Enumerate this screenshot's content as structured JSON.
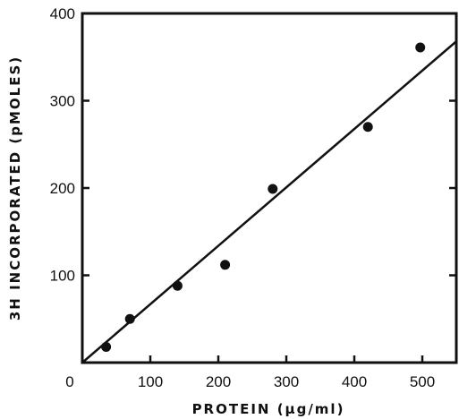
{
  "chart_data": {
    "type": "scatter",
    "title": "",
    "xlabel": "PROTEIN (µg/ml)",
    "ylabel": "3H INCORPORATED (pMOLES)",
    "xlim": [
      0,
      550
    ],
    "ylim": [
      0,
      400
    ],
    "x_ticks": [
      0,
      100,
      200,
      300,
      400,
      500
    ],
    "x_tick_labels": [
      "0",
      "100",
      "200",
      "300",
      "400",
      "500"
    ],
    "y_ticks": [
      100,
      200,
      300,
      400
    ],
    "y_tick_labels": [
      "100",
      "200",
      "300",
      "400"
    ],
    "grid": false,
    "series": [
      {
        "points": [
          {
            "x": 35,
            "y": 18
          },
          {
            "x": 70,
            "y": 50
          },
          {
            "x": 140,
            "y": 88
          },
          {
            "x": 210,
            "y": 112
          },
          {
            "x": 280,
            "y": 199
          },
          {
            "x": 420,
            "y": 270
          },
          {
            "x": 497,
            "y": 361
          }
        ]
      }
    ],
    "fit_line": {
      "x": [
        0,
        550
      ],
      "y": [
        0,
        368
      ]
    }
  }
}
